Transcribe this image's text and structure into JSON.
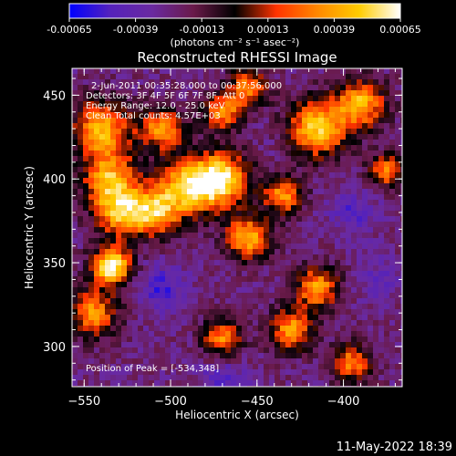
{
  "colorbar": {
    "tick_labels": [
      "-0.00065",
      "-0.00039",
      "-0.00013",
      "0.00013",
      "0.00039",
      "0.00065"
    ],
    "ticks": [
      -0.00065,
      -0.00039,
      -0.00013,
      0.00013,
      0.00039,
      0.00065
    ],
    "range": [
      -0.00065,
      0.00065
    ],
    "unit_label": "(photons cm⁻² s⁻¹ asec⁻²)"
  },
  "chart_data": {
    "type": "heatmap",
    "title": "Reconstructed RHESSI Image",
    "xlabel": "Heliocentric X (arcsec)",
    "ylabel": "Heliocentric Y (arcsec)",
    "xlim": [
      -557,
      -366
    ],
    "ylim": [
      276,
      466
    ],
    "x_ticks": [
      -550,
      -500,
      -450,
      -400
    ],
    "y_ticks": [
      300,
      350,
      400,
      450
    ],
    "x_tick_labels": [
      "−550",
      "−500",
      "−450",
      "−400"
    ],
    "y_tick_labels": [
      "300",
      "350",
      "400",
      "450"
    ],
    "colormap": [
      "#0000ff",
      "#5522bb",
      "#6a2aa0",
      "#6a1a4a",
      "#000000",
      "#ff3300",
      "#ff8800",
      "#ffcc00",
      "#ffffff"
    ],
    "grid": false,
    "annotations": [
      "2-Jun-2011 00:35:28.000 to 00:37:56.000",
      "Detectors: 3F 4F 5F 6F 7F 8F, Att 0",
      "Energy Range: 12.0 - 25.0 keV",
      "Clean     Total counts: 4.57E+03",
      "Position of Peak = [-534,348]"
    ],
    "hot_regions": [
      {
        "x": -540,
        "y": 430,
        "sigma": 12,
        "value": 0.00042
      },
      {
        "x": -535,
        "y": 400,
        "sigma": 11,
        "value": 0.0004
      },
      {
        "x": -530,
        "y": 380,
        "sigma": 10,
        "value": 0.00038
      },
      {
        "x": -534,
        "y": 348,
        "sigma": 8,
        "value": 0.00065
      },
      {
        "x": -545,
        "y": 320,
        "sigma": 10,
        "value": 0.00035
      },
      {
        "x": -510,
        "y": 380,
        "sigma": 10,
        "value": 0.0004
      },
      {
        "x": -505,
        "y": 430,
        "sigma": 9,
        "value": 0.00036
      },
      {
        "x": -490,
        "y": 395,
        "sigma": 12,
        "value": 0.0005
      },
      {
        "x": -470,
        "y": 400,
        "sigma": 11,
        "value": 0.00055
      },
      {
        "x": -470,
        "y": 440,
        "sigma": 8,
        "value": 0.00034
      },
      {
        "x": -455,
        "y": 365,
        "sigma": 9,
        "value": 0.00045
      },
      {
        "x": -435,
        "y": 390,
        "sigma": 8,
        "value": 0.00035
      },
      {
        "x": -415,
        "y": 430,
        "sigma": 12,
        "value": 0.0005
      },
      {
        "x": -390,
        "y": 445,
        "sigma": 10,
        "value": 0.00042
      },
      {
        "x": -375,
        "y": 405,
        "sigma": 7,
        "value": 0.0003
      },
      {
        "x": -415,
        "y": 335,
        "sigma": 9,
        "value": 0.00038
      },
      {
        "x": -430,
        "y": 310,
        "sigma": 9,
        "value": 0.00036
      },
      {
        "x": -470,
        "y": 305,
        "sigma": 8,
        "value": 0.00032
      },
      {
        "x": -395,
        "y": 290,
        "sigma": 8,
        "value": 0.0003
      },
      {
        "x": -455,
        "y": 455,
        "sigma": 8,
        "value": 0.0003
      }
    ],
    "cold_regions": [
      {
        "x": -505,
        "y": 335,
        "sigma": 10,
        "value": -0.0005
      },
      {
        "x": -470,
        "y": 280,
        "sigma": 10,
        "value": -0.00045
      },
      {
        "x": -395,
        "y": 380,
        "sigma": 10,
        "value": -0.00045
      },
      {
        "x": -380,
        "y": 340,
        "sigma": 9,
        "value": -0.0004
      },
      {
        "x": -440,
        "y": 420,
        "sigma": 8,
        "value": -0.0003
      }
    ]
  },
  "footer": {
    "timestamp": "11-May-2022 18:39"
  }
}
